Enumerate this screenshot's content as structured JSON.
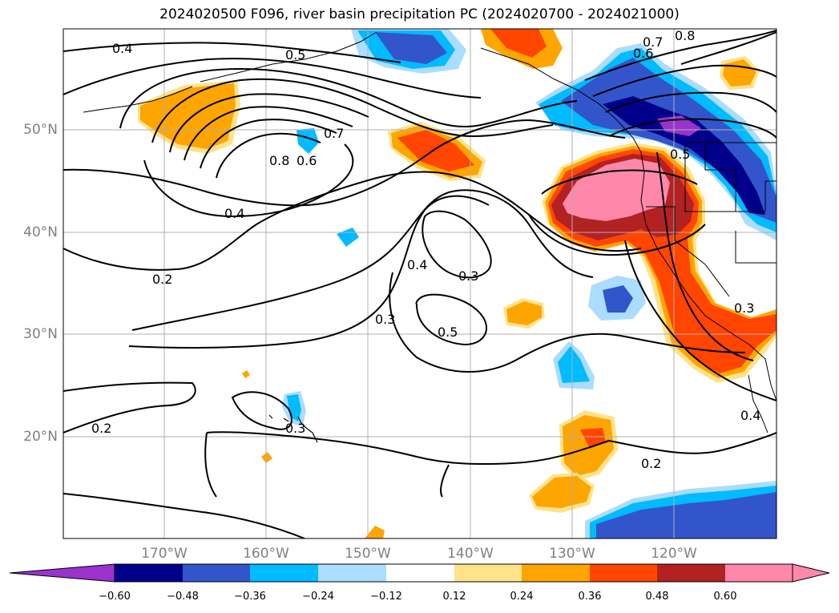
{
  "title": "2024020500 F096, river basin precipitation PC (2024020700 - 2024021000)",
  "lat_labels": [
    "50°N",
    "40°N",
    "30°N",
    "20°N"
  ],
  "lon_labels": [
    "170°W",
    "160°W",
    "150°W",
    "140°W",
    "130°W",
    "120°W"
  ],
  "contour_labels": [
    "0.4",
    "0.5",
    "0.7",
    "0.8",
    "0.6",
    "0.8",
    "0.7",
    "0.6",
    "0.4",
    "0.2",
    "0.4",
    "0.3",
    "0.3",
    "0.5",
    "0.2",
    "0.3",
    "0.2",
    "0.5",
    "0.3",
    "0.4"
  ],
  "colorbar": {
    "ticks": [
      "−0.60",
      "−0.48",
      "−0.36",
      "−0.24",
      "−0.12",
      "0.12",
      "0.24",
      "0.36",
      "0.48",
      "0.60"
    ],
    "colors": [
      "#9933cc",
      "#00008b",
      "#3355cc",
      "#00bbff",
      "#aaddff",
      "#ffffff",
      "#ffe38a",
      "#ffa500",
      "#ff4500",
      "#b22222",
      "#ff88aa",
      "#ff88aa"
    ]
  },
  "colors": {
    "pink": "#ff88aa",
    "darkred": "#b22222",
    "orangered": "#ff4500",
    "orange": "#ffa500",
    "yellow": "#ffe38a",
    "lightblue": "#aaddff",
    "skyblue": "#00bbff",
    "blue": "#3355cc",
    "navy": "#00008b",
    "purple": "#9933cc"
  }
}
